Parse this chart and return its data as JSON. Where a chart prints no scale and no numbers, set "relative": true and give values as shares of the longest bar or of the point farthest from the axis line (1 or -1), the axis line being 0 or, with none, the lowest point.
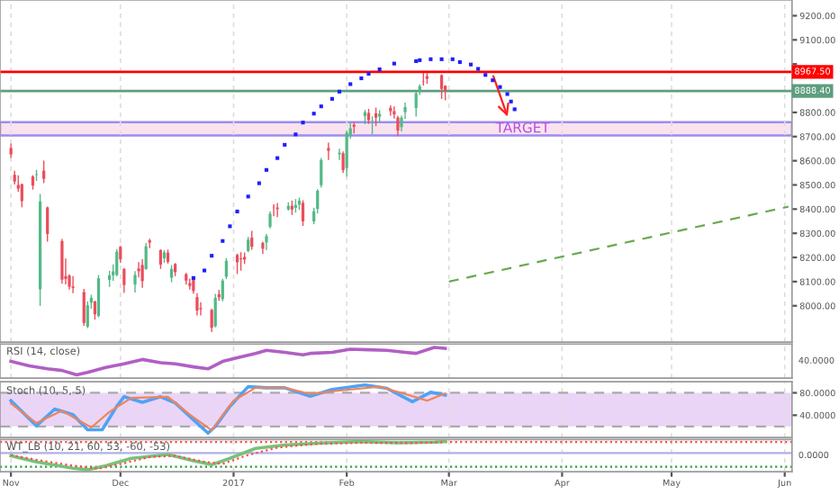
{
  "chart_data": [
    {
      "type": "candlestick",
      "x": [
        "2016-11-01",
        "2016-11-02",
        "2016-11-03",
        "2016-11-04",
        "2016-11-07",
        "2016-11-08",
        "2016-11-09",
        "2016-11-10",
        "2016-11-11",
        "2016-11-15",
        "2016-11-16",
        "2016-11-17",
        "2016-11-18",
        "2016-11-21",
        "2016-11-22",
        "2016-11-23",
        "2016-11-24",
        "2016-11-25",
        "2016-11-28",
        "2016-11-29",
        "2016-11-30",
        "2016-12-01",
        "2016-12-02",
        "2016-12-05",
        "2016-12-06",
        "2016-12-07",
        "2016-12-08",
        "2016-12-09",
        "2016-12-12",
        "2016-12-13",
        "2016-12-14",
        "2016-12-15",
        "2016-12-16",
        "2016-12-19",
        "2016-12-20",
        "2016-12-21",
        "2016-12-22",
        "2016-12-23",
        "2016-12-26",
        "2016-12-27",
        "2016-12-28",
        "2016-12-29",
        "2016-12-30",
        "2017-01-02",
        "2017-01-03",
        "2017-01-04",
        "2017-01-05",
        "2017-01-06",
        "2017-01-09",
        "2017-01-10",
        "2017-01-11",
        "2017-01-12",
        "2017-01-13",
        "2017-01-16",
        "2017-01-17",
        "2017-01-18",
        "2017-01-19",
        "2017-01-20",
        "2017-01-23",
        "2017-01-24",
        "2017-01-25",
        "2017-01-27",
        "2017-01-30",
        "2017-01-31",
        "2017-02-01",
        "2017-02-02",
        "2017-02-03",
        "2017-02-06",
        "2017-02-07",
        "2017-02-08",
        "2017-02-09",
        "2017-02-10",
        "2017-02-13",
        "2017-02-14",
        "2017-02-15",
        "2017-02-16",
        "2017-02-17",
        "2017-02-20",
        "2017-02-21",
        "2017-02-22",
        "2017-02-23",
        "2017-02-27",
        "2017-02-28"
      ],
      "ohlc": [
        [
          8653,
          8669,
          8614,
          8626
        ],
        [
          8542,
          8556,
          8504,
          8514
        ],
        [
          8500,
          8537,
          8475,
          8485
        ],
        [
          8503,
          8503,
          8410,
          8433
        ],
        [
          8535,
          8538,
          8483,
          8497
        ],
        [
          8541,
          8560,
          8519,
          8544
        ],
        [
          8068,
          8460,
          8002,
          8432
        ],
        [
          8559,
          8598,
          8510,
          8525
        ],
        [
          8407,
          8408,
          8268,
          8297
        ],
        [
          8268,
          8274,
          8094,
          8108
        ],
        [
          8123,
          8193,
          8091,
          8111
        ],
        [
          8125,
          8128,
          8070,
          8079
        ],
        [
          8080,
          8120,
          8055,
          8074
        ],
        [
          8057,
          8067,
          7920,
          7929
        ],
        [
          7914,
          8015,
          7910,
          8002
        ],
        [
          8013,
          8043,
          7990,
          8033
        ],
        [
          8018,
          8018,
          7945,
          7965
        ],
        [
          7958,
          8125,
          7955,
          8114
        ],
        [
          8107,
          8142,
          8081,
          8126
        ],
        [
          8126,
          8168,
          8106,
          8142
        ],
        [
          8128,
          8232,
          8125,
          8224
        ],
        [
          8244,
          8245,
          8180,
          8192
        ],
        [
          8153,
          8153,
          8056,
          8086
        ],
        [
          8088,
          8141,
          8058,
          8128
        ],
        [
          8154,
          8178,
          8120,
          8143
        ],
        [
          8169,
          8190,
          8077,
          8102
        ],
        [
          8152,
          8257,
          8152,
          8246
        ],
        [
          8271,
          8275,
          8241,
          8261
        ],
        [
          8230,
          8231,
          8155,
          8170
        ],
        [
          8196,
          8228,
          8180,
          8221
        ],
        [
          8220,
          8230,
          8177,
          8182
        ],
        [
          8116,
          8166,
          8100,
          8153
        ],
        [
          8173,
          8174,
          8125,
          8139
        ],
        [
          8131,
          8133,
          8090,
          8104
        ],
        [
          8094,
          8110,
          8070,
          8082
        ],
        [
          8112,
          8113,
          8052,
          8061
        ],
        [
          8036,
          8050,
          7963,
          7980
        ],
        [
          7991,
          8012,
          7963,
          7986
        ],
        [
          7983,
          7985,
          7894,
          7909
        ],
        [
          7915,
          8047,
          7913,
          8033
        ],
        [
          8048,
          8064,
          8023,
          8035
        ],
        [
          8028,
          8109,
          8021,
          8104
        ],
        [
          8120,
          8195,
          8113,
          8186
        ],
        [
          8210,
          8213,
          8134,
          8180
        ],
        [
          8196,
          8219,
          8148,
          8192
        ],
        [
          8202,
          8218,
          8176,
          8191
        ],
        [
          8227,
          8282,
          8224,
          8274
        ],
        [
          8282,
          8307,
          8234,
          8244
        ],
        [
          8260,
          8263,
          8218,
          8236
        ],
        [
          8262,
          8294,
          8233,
          8288
        ],
        [
          8327,
          8388,
          8323,
          8381
        ],
        [
          8408,
          8417,
          8373,
          8407
        ],
        [
          8406,
          8423,
          8369,
          8400
        ],
        [
          8399,
          8426,
          8396,
          8413
        ],
        [
          8414,
          8433,
          8378,
          8398
        ],
        [
          8405,
          8439,
          8388,
          8417
        ],
        [
          8418,
          8445,
          8400,
          8435
        ],
        [
          8426,
          8434,
          8333,
          8349
        ],
        [
          8349,
          8403,
          8340,
          8391
        ],
        [
          8401,
          8480,
          8384,
          8476
        ],
        [
          8499,
          8609,
          8492,
          8603
        ],
        [
          8653,
          8672,
          8606,
          8641
        ],
        [
          8627,
          8647,
          8606,
          8633
        ],
        [
          8631,
          8636,
          8552,
          8561
        ],
        [
          8570,
          8722,
          8537,
          8716
        ],
        [
          8703,
          8758,
          8694,
          8734
        ],
        [
          8749,
          8757,
          8716,
          8741
        ],
        [
          8785,
          8808,
          8754,
          8801
        ],
        [
          8798,
          8812,
          8755,
          8768
        ],
        [
          8768,
          8781,
          8712,
          8769
        ],
        [
          8796,
          8817,
          8746,
          8778
        ],
        [
          8783,
          8806,
          8763,
          8794
        ],
        [
          8819,
          8827,
          8789,
          8805
        ],
        [
          8805,
          8822,
          8777,
          8792
        ],
        [
          8779,
          8783,
          8704,
          8725
        ],
        [
          8739,
          8784,
          8724,
          8778
        ],
        [
          8801,
          8838,
          8775,
          8822
        ],
        [
          8818,
          8883,
          8785,
          8879
        ],
        [
          8891,
          8913,
          8875,
          8908
        ],
        [
          8929,
          8961,
          8914,
          8927
        ],
        [
          8950,
          8960,
          8921,
          8939
        ],
        [
          8954,
          8955,
          8858,
          8897
        ],
        [
          8910,
          8910,
          8853,
          8888
        ]
      ],
      "colors": [
        "#eb4d5c",
        "#eb4d5c",
        "#eb4d5c",
        "#eb4d5c",
        "#eb4d5c",
        "#53b987",
        "#53b987",
        "#eb4d5c",
        "#eb4d5c",
        "#eb4d5c",
        "#eb4d5c",
        "#eb4d5c",
        "#eb4d5c",
        "#eb4d5c",
        "#53b987",
        "#53b987",
        "#eb4d5c",
        "#53b987",
        "#53b987",
        "#53b987",
        "#53b987",
        "#eb4d5c",
        "#eb4d5c",
        "#53b987",
        "#eb4d5c",
        "#eb4d5c",
        "#53b987",
        "#eb4d5c",
        "#eb4d5c",
        "#53b987",
        "#eb4d5c",
        "#53b987",
        "#eb4d5c",
        "#eb4d5c",
        "#eb4d5c",
        "#eb4d5c",
        "#eb4d5c",
        "#eb4d5c",
        "#eb4d5c",
        "#53b987",
        "#eb4d5c",
        "#53b987",
        "#53b987",
        "#eb4d5c",
        "#eb4d5c",
        "#eb4d5c",
        "#53b987",
        "#eb4d5c",
        "#eb4d5c",
        "#53b987",
        "#53b987",
        "#eb4d5c",
        "#eb4d5c",
        "#53b987",
        "#eb4d5c",
        "#53b987",
        "#53b987",
        "#eb4d5c",
        "#53b987",
        "#53b987",
        "#53b987",
        "#eb4d5c",
        "#53b987",
        "#eb4d5c",
        "#53b987",
        "#53b987",
        "#eb4d5c",
        "#53b987",
        "#eb4d5c",
        "#53b987",
        "#eb4d5c",
        "#53b987",
        "#eb4d5c",
        "#eb4d5c",
        "#eb4d5c",
        "#53b987",
        "#53b987",
        "#53b987",
        "#53b987",
        "#eb4d5c",
        "#eb4d5c",
        "#eb4d5c",
        "#eb4d5c"
      ],
      "series": [
        {
          "type": "scatter",
          "color": "#1f1fff",
          "marker": "square",
          "x": [
            "2016-12-21",
            "2016-12-24",
            "2016-12-26",
            "2016-12-29",
            "2016-12-31",
            "2017-01-02",
            "2017-01-05",
            "2017-01-08",
            "2017-01-10",
            "2017-01-13",
            "2017-01-15",
            "2017-01-18",
            "2017-01-20",
            "2017-01-23",
            "2017-01-25",
            "2017-01-28",
            "2017-01-30",
            "2017-02-02",
            "2017-02-05",
            "2017-02-07",
            "2017-02-10",
            "2017-02-14",
            "2017-02-20",
            "2017-02-21",
            "2017-02-24",
            "2017-02-27",
            "2017-03-02",
            "2017-03-04",
            "2017-03-07",
            "2017-03-09",
            "2017-03-11",
            "2017-03-13",
            "2017-03-15",
            "2017-03-17",
            "2017-03-18",
            "2017-03-19"
          ],
          "values": [
            8115,
            8146,
            8207,
            8268,
            8329,
            8390,
            8452,
            8507,
            8562,
            8611,
            8666,
            8709,
            8758,
            8795,
            8825,
            8856,
            8886,
            8917,
            8941,
            8960,
            8978,
            9002,
            9012,
            9016,
            9020,
            9020,
            9020,
            9008,
            8998,
            8980,
            8955,
            8933,
            8905,
            8876,
            8845,
            8813
          ]
        },
        {
          "type": "line",
          "color": "#6aa84f",
          "line_style": "dashed",
          "x": [
            "2017-03-01",
            "2017-06-02"
          ],
          "values": [
            8100,
            8410
          ]
        }
      ],
      "ref_lines": [
        {
          "axis": "y",
          "value": 8967.5,
          "label": "8967.50",
          "color": "#ff0000"
        },
        {
          "axis": "y",
          "value": 8888.4,
          "label": "8888.40",
          "color": "#5d9e7e"
        }
      ],
      "bands": [
        {
          "axis": "y",
          "from": 8705,
          "to": 8760,
          "label": "TARGET",
          "color": "#f9e3ee"
        }
      ],
      "xlim": [
        "2016-10-29",
        "2017-06-03"
      ],
      "xticks": [
        {
          "value": "2016-11-01",
          "label": null
        },
        {
          "value": "2016-12-01",
          "label": null
        },
        {
          "value": "2017-01-01",
          "label": null
        },
        {
          "value": "2017-02-01",
          "label": null
        },
        {
          "value": "2017-03-01",
          "label": null
        },
        {
          "value": "2017-04-01",
          "label": null
        },
        {
          "value": "2017-05-01",
          "label": null
        },
        {
          "value": "2017-06-01",
          "label": null
        }
      ],
      "ylim": [
        7850,
        9265
      ],
      "yticks": [
        {
          "value": 8000,
          "label": "8000.00"
        },
        {
          "value": 8100,
          "label": "8100.00"
        },
        {
          "value": 8200,
          "label": "8200.00"
        },
        {
          "value": 8300,
          "label": "8300.00"
        },
        {
          "value": 8400,
          "label": "8400.00"
        },
        {
          "value": 8500,
          "label": "8500.00"
        },
        {
          "value": 8600,
          "label": "8600.00"
        },
        {
          "value": 8700,
          "label": "8700.00"
        },
        {
          "value": 8800,
          "label": "8800.00"
        },
        {
          "value": 8900,
          "label": null
        },
        {
          "value": 9000,
          "label": null
        },
        {
          "value": 9100,
          "label": "9100.00"
        },
        {
          "value": 9200,
          "label": "9200.00"
        }
      ],
      "grid": "x",
      "tick_labels": "y"
    },
    {
      "type": "line",
      "relative": true,
      "title": "RSI (14, close)",
      "series": [
        {
          "color": "#b15fc4",
          "x": [
            "2016-11-01",
            "2016-11-06",
            "2016-11-11",
            "2016-11-15",
            "2016-11-19",
            "2016-11-22",
            "2016-11-27",
            "2016-12-02",
            "2016-12-07",
            "2016-12-12",
            "2016-12-16",
            "2016-12-21",
            "2016-12-25",
            "2016-12-29",
            "2017-01-02",
            "2017-01-07",
            "2017-01-10",
            "2017-01-15",
            "2017-01-20",
            "2017-01-22",
            "2017-01-28",
            "2017-02-02",
            "2017-02-07",
            "2017-02-12",
            "2017-02-17",
            "2017-02-20",
            "2017-02-25",
            "2017-02-28"
          ],
          "values": [
            0.49,
            0.33,
            0.22,
            0.16,
            0,
            0.09,
            0.27,
            0.4,
            0.56,
            0.44,
            0.4,
            0.29,
            0.22,
            0.49,
            0.62,
            0.78,
            0.89,
            0.82,
            0.73,
            0.78,
            0.82,
            0.93,
            0.91,
            0.89,
            0.82,
            0.78,
            1,
            0.96
          ]
        }
      ],
      "annotations": [
        "40.0000"
      ],
      "xlim": [
        "2016-10-29",
        "2017-06-03"
      ],
      "xticks": [
        {
          "value": "2016-11-01",
          "label": null
        },
        {
          "value": "2016-12-01",
          "label": null
        },
        {
          "value": "2017-01-01",
          "label": null
        },
        {
          "value": "2017-02-01",
          "label": null
        },
        {
          "value": "2017-03-01",
          "label": null
        },
        {
          "value": "2017-04-01",
          "label": null
        },
        {
          "value": "2017-05-01",
          "label": null
        },
        {
          "value": "2017-06-01",
          "label": null
        }
      ],
      "grid": "x",
      "tick_labels": false
    },
    {
      "type": "line",
      "title": "Stoch (10, 5, 5)",
      "series": [
        {
          "color": "#4ea3f5",
          "x": [
            "2016-11-01",
            "2016-11-08",
            "2016-11-13",
            "2016-11-18",
            "2016-11-22",
            "2016-11-26",
            "2016-11-30",
            "2016-12-02",
            "2016-12-07",
            "2016-12-12",
            "2016-12-16",
            "2016-12-21",
            "2016-12-25",
            "2016-12-27",
            "2016-12-31",
            "2017-01-05",
            "2017-01-10",
            "2017-01-15",
            "2017-01-22",
            "2017-01-28",
            "2017-02-06",
            "2017-02-12",
            "2017-02-19",
            "2017-02-24",
            "2017-02-28"
          ],
          "values": [
            66,
            21,
            51,
            41,
            14,
            14,
            56,
            73,
            63,
            73,
            62,
            32,
            8,
            20,
            56,
            91,
            89,
            89,
            74,
            86,
            94,
            88,
            64,
            81,
            76
          ]
        },
        {
          "color": "#f0845a",
          "x": [
            "2016-11-01",
            "2016-11-08",
            "2016-11-15",
            "2016-11-23",
            "2016-11-28",
            "2016-12-04",
            "2016-12-14",
            "2016-12-20",
            "2016-12-26",
            "2017-01-01",
            "2017-01-07",
            "2017-01-15",
            "2017-01-22",
            "2017-01-30",
            "2017-02-10",
            "2017-02-18",
            "2017-02-23",
            "2017-02-28"
          ],
          "values": [
            61,
            26,
            48,
            18,
            46,
            71,
            73,
            41,
            13,
            66,
            89,
            89,
            78,
            84,
            91,
            76,
            66,
            79
          ]
        }
      ],
      "bands": [
        {
          "axis": "y",
          "from": 20,
          "to": 80,
          "color": "#ead5f7"
        }
      ],
      "ref_lines": [
        {
          "axis": "y",
          "value": 20,
          "color": "#aaaaaa",
          "line_style": "dashed"
        },
        {
          "axis": "y",
          "value": 80,
          "color": "#aaaaaa",
          "line_style": "dashed"
        }
      ],
      "xlim": [
        "2016-10-29",
        "2017-06-03"
      ],
      "xticks": [
        {
          "value": "2016-11-01",
          "label": null
        },
        {
          "value": "2016-12-01",
          "label": null
        },
        {
          "value": "2017-01-01",
          "label": null
        },
        {
          "value": "2017-02-01",
          "label": null
        },
        {
          "value": "2017-03-01",
          "label": null
        },
        {
          "value": "2017-04-01",
          "label": null
        },
        {
          "value": "2017-05-01",
          "label": null
        },
        {
          "value": "2017-06-01",
          "label": null
        }
      ],
      "ylim": [
        0,
        100
      ],
      "yticks": [
        {
          "value": 40,
          "label": "40.0000"
        },
        {
          "value": 80,
          "label": "80.0000"
        }
      ],
      "grid": "x",
      "tick_labels": "y"
    },
    {
      "type": "line",
      "relative": true,
      "title": "WT_LB (10, 21, 60, 53, -60, -53)",
      "series": [
        {
          "color": "#77c27a",
          "x": [
            "2016-11-01",
            "2016-11-08",
            "2016-11-18",
            "2016-11-22",
            "2016-11-27",
            "2016-12-04",
            "2016-12-14",
            "2016-12-21",
            "2016-12-26",
            "2016-12-31",
            "2017-01-07",
            "2017-01-15",
            "2017-01-25",
            "2017-02-05",
            "2017-02-15",
            "2017-02-25",
            "2017-02-28"
          ],
          "values": [
            -0.17,
            -0.53,
            -0.91,
            -1,
            -0.76,
            -0.32,
            -0.09,
            -0.47,
            -0.7,
            -0.32,
            0.27,
            0.47,
            0.59,
            0.68,
            0.61,
            0.65,
            0.68
          ]
        },
        {
          "color": "#ff4d4d",
          "line_style": "dotted",
          "x": [
            "2016-11-01",
            "2016-11-08",
            "2016-11-18",
            "2016-11-25",
            "2016-12-02",
            "2016-12-09",
            "2016-12-16",
            "2016-12-24",
            "2016-12-29",
            "2017-01-05",
            "2017-01-13",
            "2017-01-23",
            "2017-02-05",
            "2017-02-18",
            "2017-02-28"
          ],
          "values": [
            -0.12,
            -0.41,
            -0.76,
            -0.94,
            -0.61,
            -0.24,
            -0.17,
            -0.53,
            -0.65,
            -0.12,
            0.32,
            0.53,
            0.61,
            0.59,
            0.65
          ]
        }
      ],
      "ref_lines": [
        {
          "axis": "y",
          "value": 0,
          "color": "#b0b0e8"
        },
        {
          "axis": "y",
          "value": 0.65,
          "color": "#ff4d4d",
          "line_style": "dotted"
        },
        {
          "axis": "y",
          "value": -0.82,
          "color": "#2e9e3e",
          "line_style": "dotted"
        }
      ],
      "annotations": [
        "0.0000"
      ],
      "xlim": [
        "2016-10-29",
        "2017-06-03"
      ],
      "xticks": [
        {
          "value": "2016-11-01",
          "label": "Nov"
        },
        {
          "value": "2016-12-01",
          "label": "Dec"
        },
        {
          "value": "2017-01-01",
          "label": "2017"
        },
        {
          "value": "2017-02-01",
          "label": "Feb"
        },
        {
          "value": "2017-03-01",
          "label": "Mar"
        },
        {
          "value": "2017-04-01",
          "label": "Apr"
        },
        {
          "value": "2017-05-01",
          "label": "May"
        },
        {
          "value": "2017-06-01",
          "label": "Jun"
        }
      ],
      "grid": "x",
      "tick_labels": "x"
    }
  ]
}
